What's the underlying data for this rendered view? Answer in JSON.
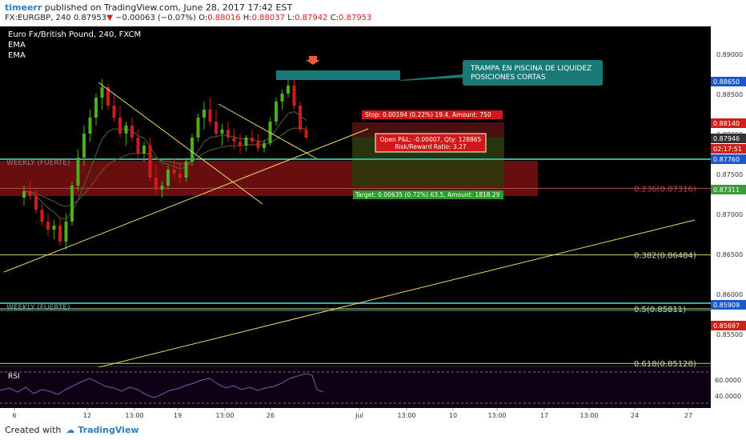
{
  "header": {
    "username": "timeerr",
    "published_text": "published on TradingView.com, June 28, 2017 17:42 EST",
    "ohlc_prefix": "FX:EURGBP, 240  0.87953",
    "change_arrow": "▼",
    "change": "−0.00063 (−0.07%)",
    "open_label": "O:",
    "open": "0.88016",
    "high_label": "H:",
    "high": "0.88037",
    "low_label": "L:",
    "low": "0.87942",
    "close_label": "C:",
    "close": "0.87953"
  },
  "legend": {
    "title": "Euro Fx/British Pound, 240, FXCM",
    "ema1": "EMA",
    "ema2": "EMA"
  },
  "annotations": {
    "callout": [
      "TRAMPA EN PISCINA DE LIQUIDEZ",
      "POSICIONES CORTAS"
    ],
    "stop": "Stop: 0.00194 (0.22%) 19.4, Amount: 750",
    "open_pl": [
      "Open P&L: -0.00007, Qty: 128865",
      "Risk/Reward Ratio: 3.27"
    ],
    "target": "Target: 0.00635 (0.72%) 63.5, Amount: 1818.29",
    "weekly1": "WEEKLY (FUERTE)",
    "weekly2": "WEEKLY (FUERTE)",
    "rsi_label": "RSI"
  },
  "footer": {
    "created_with": "Created with",
    "brand": "TradingView"
  },
  "colors": {
    "background": "#000000",
    "candle_up": "#4caf1e",
    "candle_down": "#d11a1a",
    "trendline": "#e8dc6a",
    "fib_line": "#c7cd7a",
    "weekly_zone": "#7a1111",
    "weekly_line": "#3fa8a4",
    "callout": "#1a7a78",
    "stop_zone": "#4a1010",
    "target_zone": "#2e3a10",
    "rsi_line": "#8a4fb8"
  },
  "chart_data": {
    "type": "candlestick",
    "symbol": "FX:EURGBP",
    "timeframe": "240",
    "x_ticks": [
      "6",
      "12",
      "13:00",
      "19",
      "13:00",
      "26",
      "Jul",
      "13:00",
      "10",
      "13:00",
      "17",
      "13:00",
      "24",
      "27"
    ],
    "y_ticks": [
      "0.89000",
      "0.88500",
      "0.88000",
      "0.87500",
      "0.87000",
      "0.86500",
      "0.86000",
      "0.85500"
    ],
    "ylim": [
      0.851,
      0.892
    ],
    "price_labels": [
      {
        "value": "0.88650",
        "color": "#1e57c9"
      },
      {
        "value": "0.88140",
        "color": "#d0201c"
      },
      {
        "value": "0.87946",
        "color": "#333333"
      },
      {
        "value": "02:17:51",
        "color": "#d0201c"
      },
      {
        "value": "0.87760",
        "color": "#1e57c9"
      },
      {
        "value": "0.87311",
        "color": "#3a9c3a"
      },
      {
        "value": "0.85909",
        "color": "#1e57c9"
      },
      {
        "value": "0.85697",
        "color": "#d0201c"
      }
    ],
    "fib_levels": [
      {
        "label": "0.236(0.87316)",
        "value": 0.87316
      },
      {
        "label": "0.382(0.86484)",
        "value": 0.86484
      },
      {
        "label": "0.5(0.85811)",
        "value": 0.85811
      },
      {
        "label": "0.618(0.85128)",
        "value": 0.85128
      }
    ],
    "position": {
      "entry": 0.87946,
      "stop": 0.8814,
      "target": 0.87311
    },
    "candles": [
      [
        0.872,
        0.8735,
        0.871,
        0.8728
      ],
      [
        0.8728,
        0.874,
        0.8718,
        0.8722
      ],
      [
        0.8722,
        0.873,
        0.87,
        0.8705
      ],
      [
        0.8705,
        0.8712,
        0.8685,
        0.869
      ],
      [
        0.869,
        0.87,
        0.8672,
        0.868
      ],
      [
        0.868,
        0.8692,
        0.8668,
        0.8685
      ],
      [
        0.8685,
        0.8695,
        0.866,
        0.8665
      ],
      [
        0.8665,
        0.87,
        0.8655,
        0.869
      ],
      [
        0.869,
        0.874,
        0.8685,
        0.8735
      ],
      [
        0.8735,
        0.878,
        0.8728,
        0.877
      ],
      [
        0.877,
        0.881,
        0.876,
        0.88
      ],
      [
        0.88,
        0.883,
        0.879,
        0.882
      ],
      [
        0.882,
        0.885,
        0.881,
        0.8845
      ],
      [
        0.8845,
        0.8868,
        0.883,
        0.8858
      ],
      [
        0.8858,
        0.8862,
        0.883,
        0.8835
      ],
      [
        0.8835,
        0.885,
        0.8815,
        0.882
      ],
      [
        0.882,
        0.8835,
        0.8795,
        0.88
      ],
      [
        0.88,
        0.8815,
        0.8785,
        0.881
      ],
      [
        0.881,
        0.882,
        0.879,
        0.8795
      ],
      [
        0.8795,
        0.8805,
        0.877,
        0.8775
      ],
      [
        0.8775,
        0.879,
        0.8765,
        0.8785
      ],
      [
        0.8785,
        0.8795,
        0.874,
        0.8745
      ],
      [
        0.8745,
        0.876,
        0.8725,
        0.873
      ],
      [
        0.873,
        0.874,
        0.872,
        0.8735
      ],
      [
        0.8735,
        0.876,
        0.873,
        0.8755
      ],
      [
        0.8755,
        0.877,
        0.8745,
        0.875
      ],
      [
        0.875,
        0.8762,
        0.8738,
        0.8745
      ],
      [
        0.8745,
        0.877,
        0.874,
        0.8765
      ],
      [
        0.8765,
        0.88,
        0.876,
        0.8795
      ],
      [
        0.8795,
        0.8825,
        0.879,
        0.882
      ],
      [
        0.882,
        0.884,
        0.8805,
        0.883
      ],
      [
        0.883,
        0.8845,
        0.881,
        0.8815
      ],
      [
        0.8815,
        0.883,
        0.8795,
        0.88
      ],
      [
        0.88,
        0.8812,
        0.8785,
        0.8805
      ],
      [
        0.8805,
        0.8815,
        0.879,
        0.8795
      ],
      [
        0.8795,
        0.8805,
        0.878,
        0.879
      ],
      [
        0.879,
        0.88,
        0.8775,
        0.8785
      ],
      [
        0.8785,
        0.8798,
        0.8778,
        0.8795
      ],
      [
        0.8795,
        0.8805,
        0.8785,
        0.879
      ],
      [
        0.879,
        0.88,
        0.8778,
        0.8782
      ],
      [
        0.8782,
        0.8792,
        0.8776,
        0.8788
      ],
      [
        0.8788,
        0.882,
        0.8785,
        0.8815
      ],
      [
        0.8815,
        0.8845,
        0.881,
        0.884
      ],
      [
        0.884,
        0.8855,
        0.883,
        0.885
      ],
      [
        0.885,
        0.8874,
        0.8845,
        0.886
      ],
      [
        0.886,
        0.8868,
        0.883,
        0.8835
      ],
      [
        0.8835,
        0.884,
        0.88,
        0.8805
      ],
      [
        0.8805,
        0.881,
        0.8794,
        0.8795
      ]
    ],
    "rsi": {
      "label": "RSI",
      "y_ticks": [
        "60.0000",
        "40.0000"
      ],
      "levels": [
        70,
        30
      ]
    }
  }
}
